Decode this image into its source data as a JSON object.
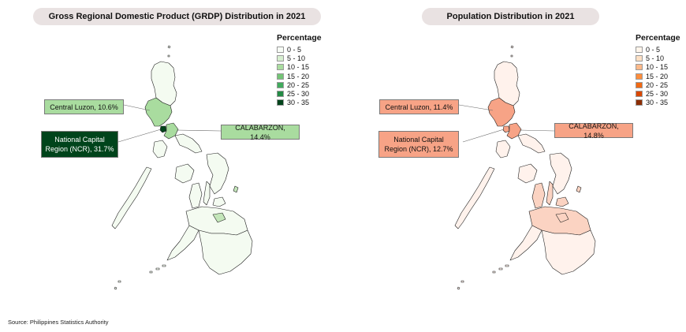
{
  "source": "Source: Philippines Statistics Authority",
  "maps": [
    {
      "title": "Gross Regional Domestic Product (GRDP) Distribution in 2021",
      "legend": {
        "title": "Percentage",
        "items": [
          {
            "label": "0 - 5",
            "color": "#f7fcf5"
          },
          {
            "label": "5 - 10",
            "color": "#d7efd0"
          },
          {
            "label": "10 - 15",
            "color": "#a9dc9f"
          },
          {
            "label": "15 - 20",
            "color": "#74c476"
          },
          {
            "label": "20 - 25",
            "color": "#41ab5d"
          },
          {
            "label": "25 - 30",
            "color": "#238b45"
          },
          {
            "label": "30 - 35",
            "color": "#00441b"
          }
        ]
      },
      "callouts": {
        "central_luzon": "Central Luzon, 10.6%",
        "ncr": "National Capital Region (NCR), 31.7%",
        "calabarzon": "CALABARZON, 14.4%"
      },
      "colors": {
        "central_luzon": "#a9dc9f",
        "ncr": "#00441b",
        "calabarzon": "#a9dc9f",
        "other": "#f4fbf1",
        "island_tint": "#c3e6b9"
      }
    },
    {
      "title": "Population Distribution in 2021",
      "legend": {
        "title": "Percentage",
        "items": [
          {
            "label": "0 - 5",
            "color": "#fff5eb"
          },
          {
            "label": "5 - 10",
            "color": "#fde0c5"
          },
          {
            "label": "10 - 15",
            "color": "#fdb98a"
          },
          {
            "label": "15 - 20",
            "color": "#fd8d3c"
          },
          {
            "label": "20 - 25",
            "color": "#f16913"
          },
          {
            "label": "25 - 30",
            "color": "#d94801"
          },
          {
            "label": "30 - 35",
            "color": "#8c2d04"
          }
        ]
      },
      "callouts": {
        "central_luzon": "Central Luzon, 11.4%",
        "ncr": "National Capital Region (NCR), 12.7%",
        "calabarzon": "CALABARZON, 14.8%"
      },
      "colors": {
        "central_luzon": "#f7a386",
        "ncr": "#f7a386",
        "calabarzon": "#f7a386",
        "other": "#fff2ec",
        "island_tint": "#fbd3c2"
      }
    }
  ]
}
